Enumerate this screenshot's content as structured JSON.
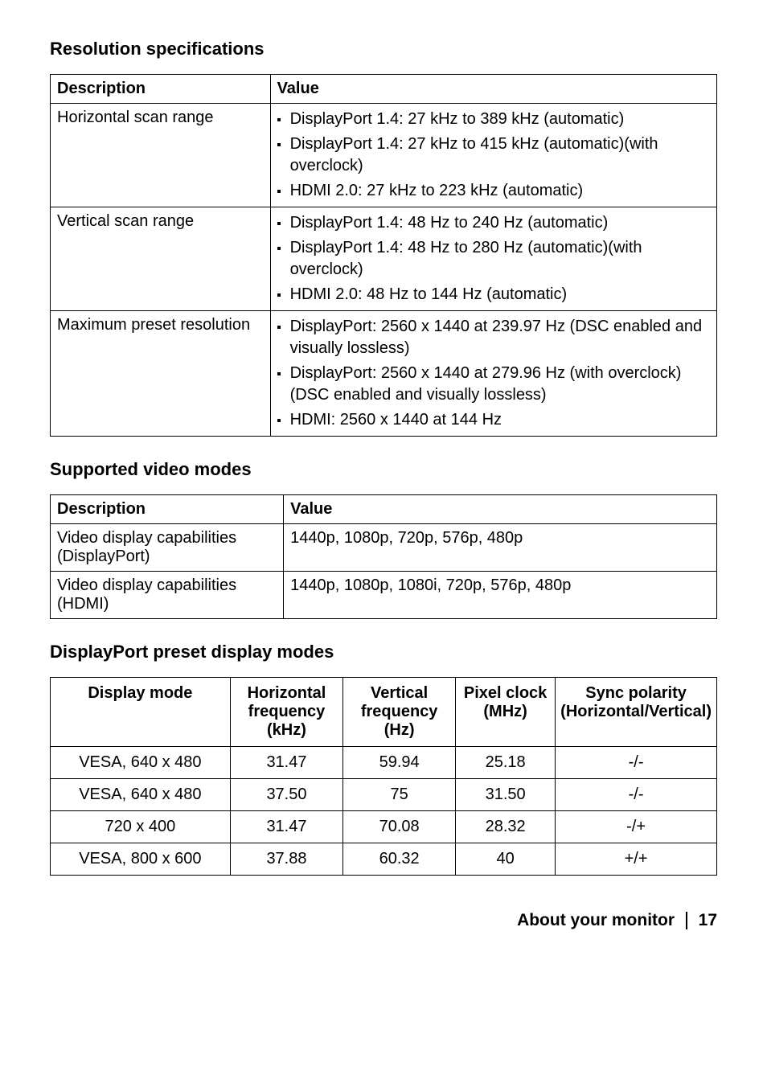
{
  "headings": {
    "resolution_specs": "Resolution specifications",
    "supported_modes": "Supported video modes",
    "preset_modes": "DisplayPort preset display modes"
  },
  "table_headers": {
    "description": "Description",
    "value": "Value"
  },
  "resolution_table": {
    "rows": [
      {
        "description": "Horizontal scan range",
        "items": [
          "DisplayPort 1.4: 27 kHz to 389 kHz (automatic)",
          "DisplayPort 1.4: 27 kHz to 415 kHz (automatic)(with overclock)",
          "HDMI 2.0: 27 kHz to 223 kHz (automatic)"
        ]
      },
      {
        "description": "Vertical scan range",
        "items": [
          "DisplayPort 1.4: 48 Hz to 240 Hz (automatic)",
          "DisplayPort 1.4: 48 Hz to 280 Hz (automatic)(with overclock)",
          "HDMI 2.0: 48 Hz to 144 Hz (automatic)"
        ]
      },
      {
        "description": "Maximum preset resolution",
        "items": [
          "DisplayPort: 2560 x 1440 at 239.97 Hz (DSC enabled and visually lossless)",
          "DisplayPort: 2560 x 1440 at 279.96 Hz (with overclock)(DSC enabled and visually lossless)",
          "HDMI: 2560 x 1440 at 144 Hz"
        ]
      }
    ]
  },
  "video_modes_table": {
    "rows": [
      {
        "description": "Video display capabilities (DisplayPort)",
        "value": "1440p, 1080p, 720p, 576p, 480p"
      },
      {
        "description": "Video display capabilities (HDMI)",
        "value": "1440p, 1080p, 1080i, 720p, 576p, 480p"
      }
    ]
  },
  "preset_table": {
    "headers": {
      "mode": "Display mode",
      "hfreq": "Horizontal frequency (kHz)",
      "vfreq": "Vertical frequency (Hz)",
      "pclock": "Pixel clock (MHz)",
      "sync": "Sync polarity (Horizontal/Vertical)"
    },
    "rows": [
      {
        "mode": "VESA, 640 x 480",
        "hfreq": "31.47",
        "vfreq": "59.94",
        "pclock": "25.18",
        "sync": "-/-"
      },
      {
        "mode": "VESA, 640 x 480",
        "hfreq": "37.50",
        "vfreq": "75",
        "pclock": "31.50",
        "sync": "-/-"
      },
      {
        "mode": "720 x 400",
        "hfreq": "31.47",
        "vfreq": "70.08",
        "pclock": "28.32",
        "sync": "-/+"
      },
      {
        "mode": "VESA, 800 x 600",
        "hfreq": "37.88",
        "vfreq": "60.32",
        "pclock": "40",
        "sync": "+/+"
      }
    ]
  },
  "footer": {
    "title": "About your monitor",
    "page": "17"
  }
}
